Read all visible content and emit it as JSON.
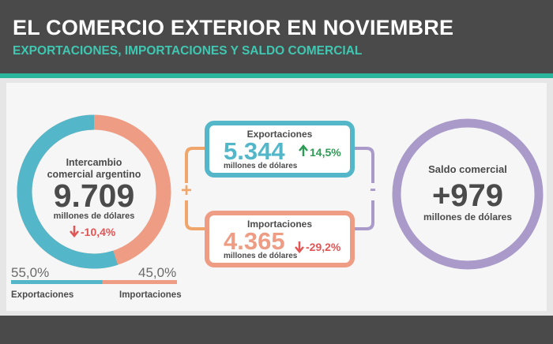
{
  "header": {
    "title": "EL COMERCIO EXTERIOR EN NOVIEMBRE",
    "subtitle": "EXPORTACIONES, IMPORTACIONES Y SALDO COMERCIAL"
  },
  "intercambio": {
    "label": "Intercambio comercial argentino",
    "value": "9.709",
    "unit": "millones de dólares",
    "change": "-10,4%",
    "change_icon": "arrow-down-icon",
    "export_share": 55.0,
    "import_share": 45.0,
    "export_share_label": "55,0%",
    "import_share_label": "45,0%",
    "export_label": "Exportaciones",
    "import_label": "Importaciones"
  },
  "exportaciones": {
    "label": "Exportaciones",
    "value": "5.344",
    "unit": "millones de dólares",
    "change": "14,5%",
    "change_icon": "arrow-up-icon"
  },
  "importaciones": {
    "label": "Importaciones",
    "value": "4.365",
    "unit": "millones de dólares",
    "change": "-29,2%",
    "change_icon": "arrow-down-icon"
  },
  "operators": {
    "plus": "+",
    "minus": "-"
  },
  "saldo": {
    "label": "Saldo comercial",
    "value": "+979",
    "unit": "millones de dólares"
  },
  "colors": {
    "exports": "#54b7c9",
    "imports": "#ee9d84",
    "saldo": "#a99ac9",
    "operator": "#f0a56a",
    "accent": "#2bb59c",
    "down": "#e25555",
    "up": "#2f9a55"
  }
}
